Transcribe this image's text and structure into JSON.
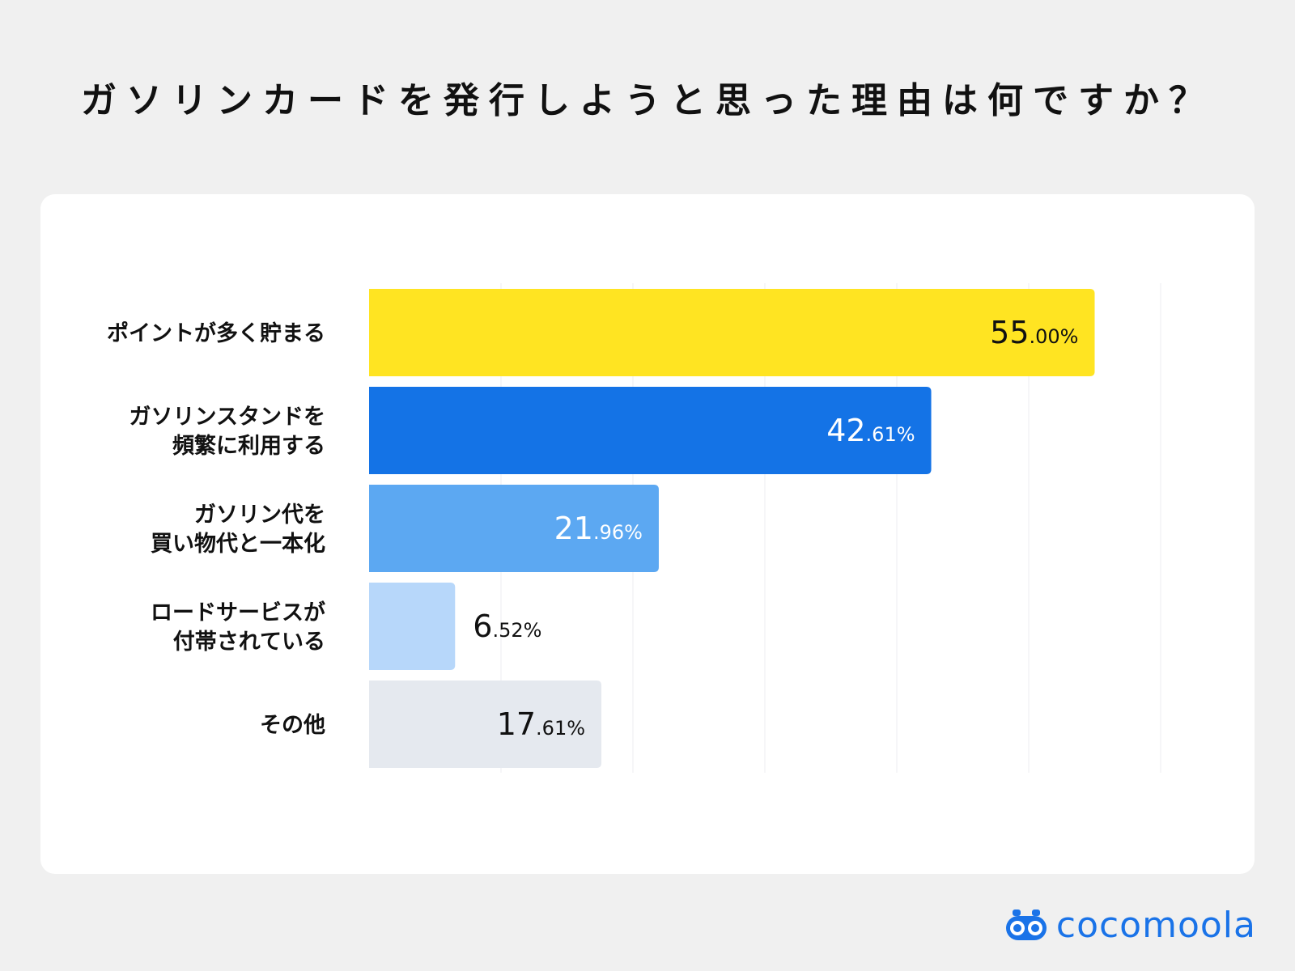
{
  "page": {
    "title": "ガソリンカードを発行しようと思った理由は何ですか？"
  },
  "chart_data": {
    "type": "bar",
    "orientation": "horizontal",
    "title": "ガソリンカードを発行しようと思った理由は何ですか？",
    "categories": [
      [
        "ポイントが多く貯まる"
      ],
      [
        "ガソリンスタンドを",
        "頻繁に利用する"
      ],
      [
        "ガソリン代を",
        "買い物代と一本化"
      ],
      [
        "ロードサービスが",
        "付帯されている"
      ],
      [
        "その他"
      ]
    ],
    "values": [
      55.0,
      42.61,
      21.96,
      6.52,
      17.61
    ],
    "value_labels": [
      [
        "55",
        ".00%"
      ],
      [
        "42",
        ".61%"
      ],
      [
        "21",
        ".96%"
      ],
      [
        "6",
        ".52%"
      ],
      [
        "17",
        ".61%"
      ]
    ],
    "bar_colors": [
      "#ffe422",
      "#1473e6",
      "#5ca8f2",
      "#b7d7fa",
      "#e5e9ef"
    ],
    "label_colors": [
      "#111111",
      "#ffffff",
      "#ffffff",
      "#111111",
      "#111111"
    ],
    "label_inside": [
      true,
      true,
      true,
      false,
      true
    ],
    "xlim": [
      0,
      60
    ],
    "gridlines": [
      10,
      20,
      30,
      40,
      50,
      60
    ],
    "grid": true
  },
  "logo": {
    "text": "cocomoola",
    "color": "#1a73e8"
  }
}
